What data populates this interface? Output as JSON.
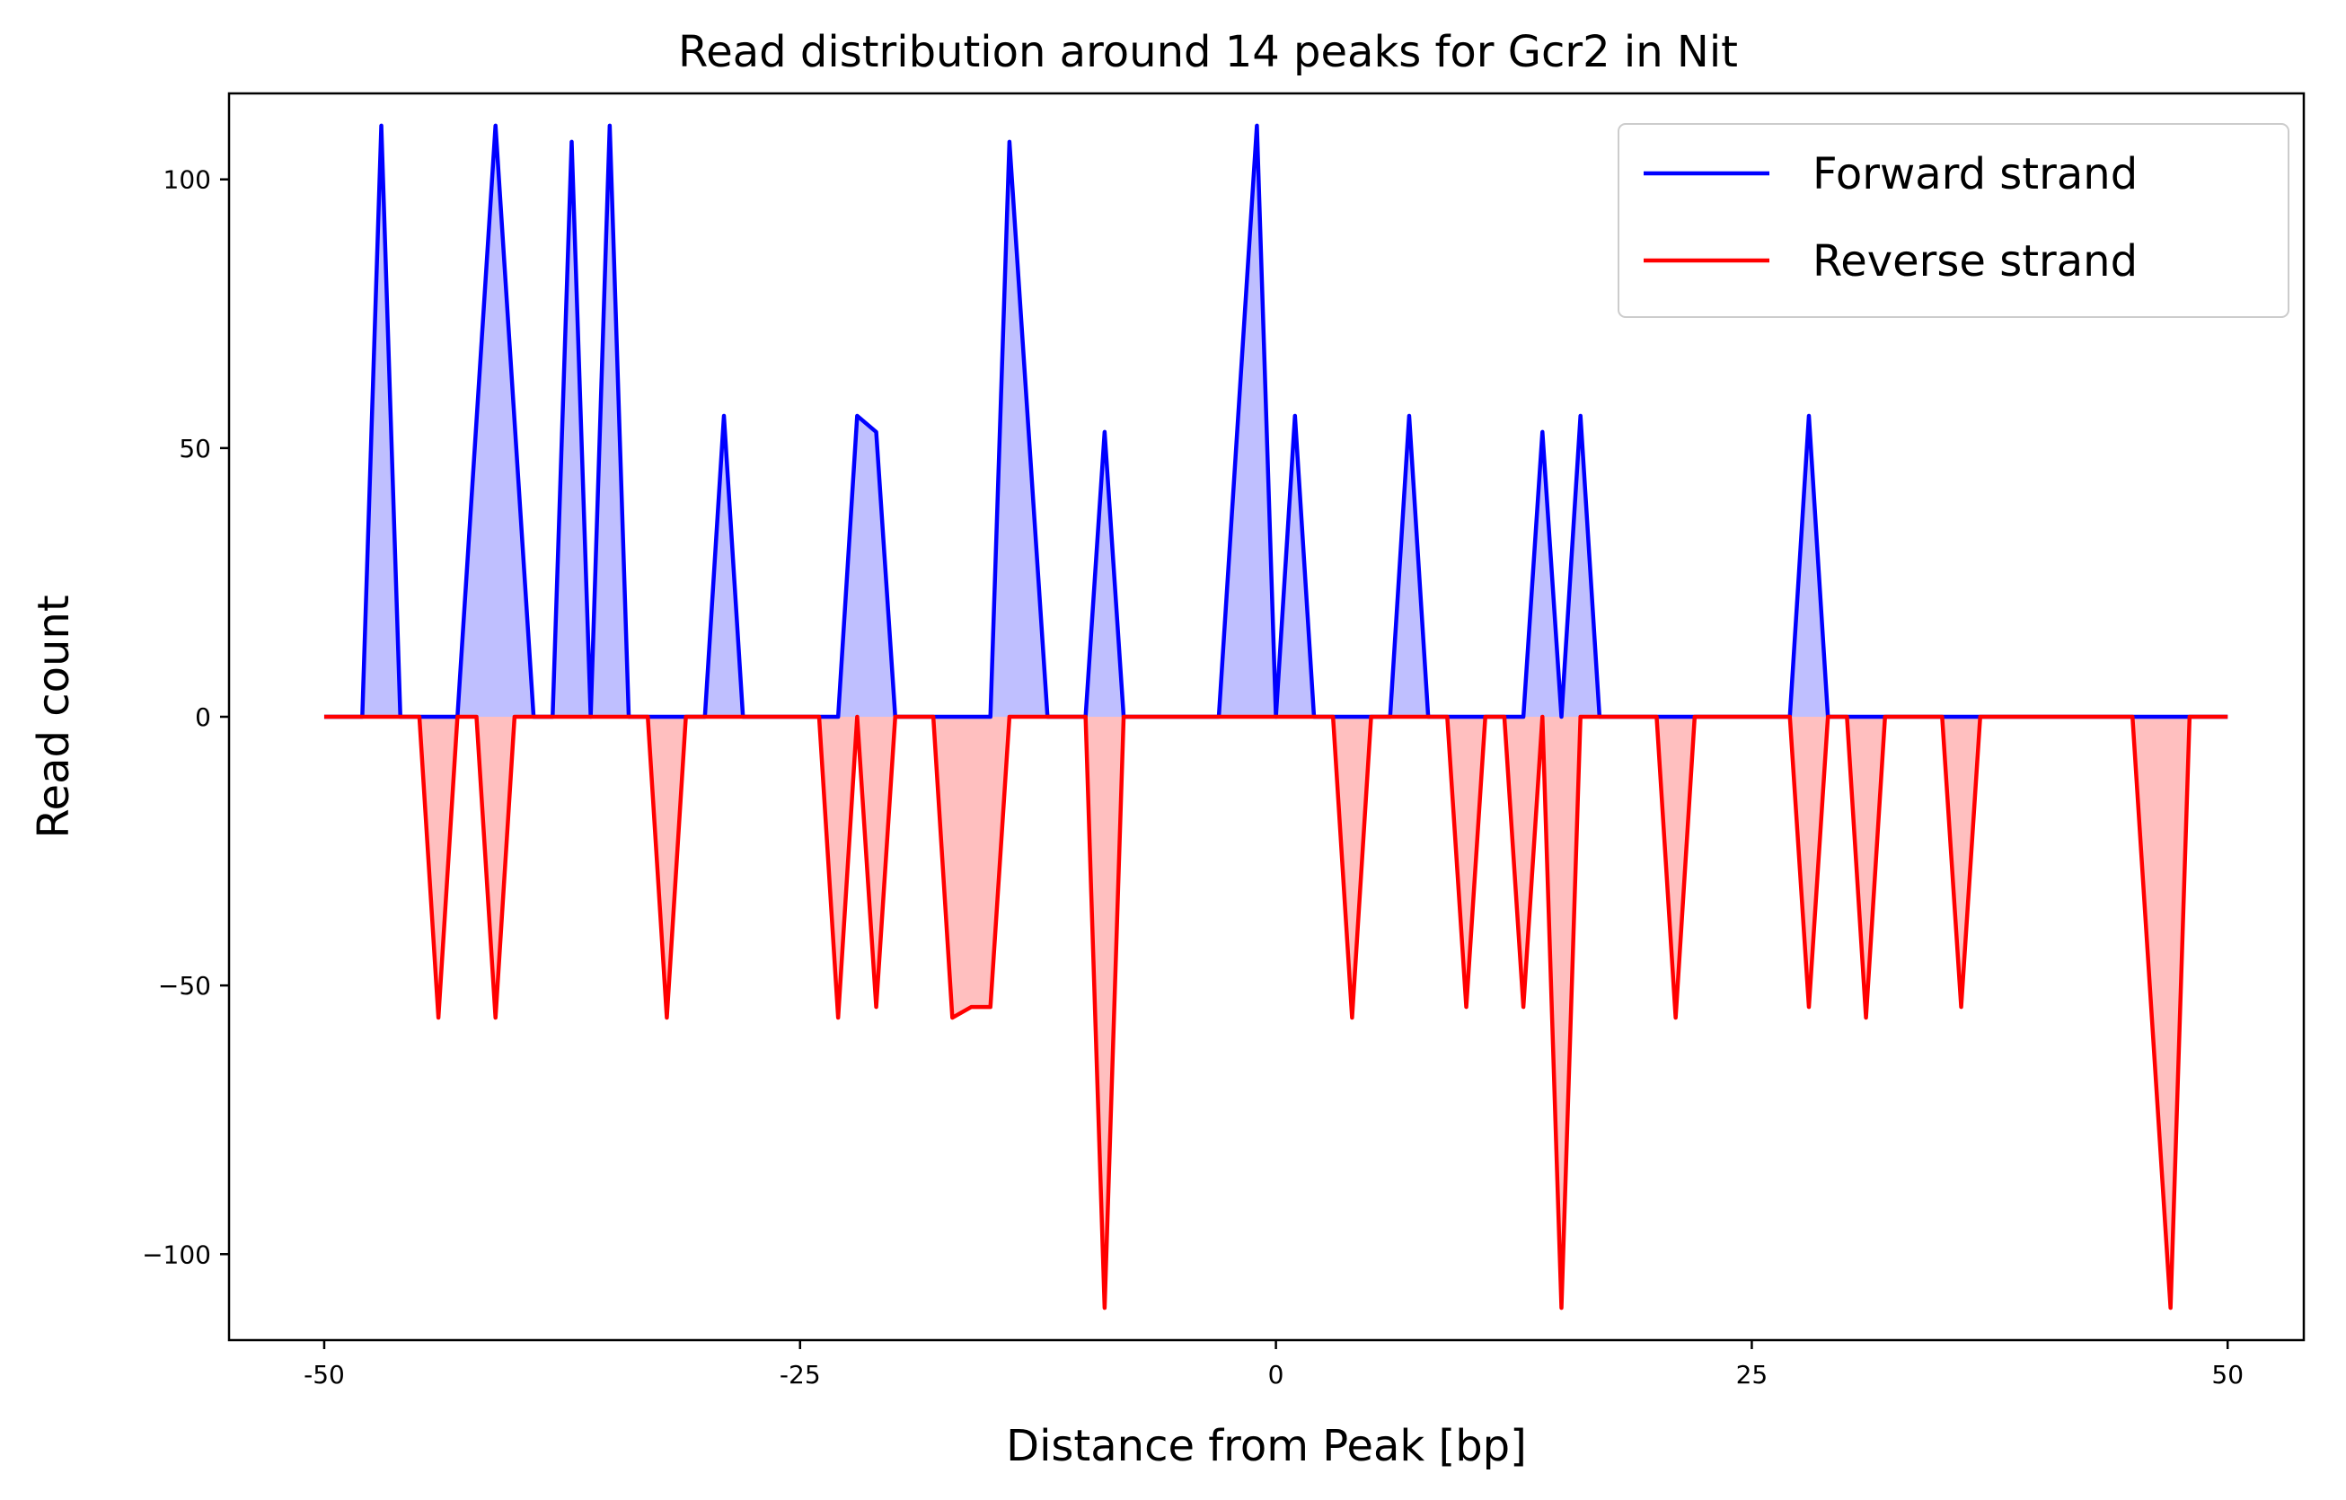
{
  "chart_data": {
    "type": "area",
    "title": "Read distribution around 14 peaks for Gcr2 in Nit",
    "xlabel": "Distance from Peak [bp]",
    "ylabel": "Read count",
    "xlim": [
      -55,
      54
    ],
    "ylim": [
      -116,
      116
    ],
    "xticks": [
      -50,
      -25,
      0,
      25,
      50
    ],
    "xtick_labels": [
      "-50",
      "-25",
      "0",
      "25",
      "50"
    ],
    "yticks": [
      -100,
      -50,
      0,
      50,
      100
    ],
    "ytick_labels": [
      "−100",
      "−50",
      "0",
      "50",
      "100"
    ],
    "grid": false,
    "legend_position": "top-right",
    "series": [
      {
        "name": "Forward strand",
        "color": "#0000ff",
        "fill": "#bfbfff",
        "x": [
          -50,
          -48,
          -47,
          -46,
          -45,
          -43,
          -41,
          -39,
          -38,
          -37,
          -36,
          -35,
          -34,
          -31,
          -30,
          -29,
          -28,
          -23,
          -22,
          -21,
          -20,
          -15,
          -14,
          -12,
          -10,
          -9,
          -8,
          -3,
          -1,
          0,
          1,
          2,
          6,
          7,
          8,
          13,
          14,
          15,
          16,
          17,
          27,
          28,
          29,
          50
        ],
        "values": [
          0,
          0,
          110,
          0,
          0,
          0,
          110,
          0,
          0,
          107,
          0,
          110,
          0,
          0,
          0,
          56,
          0,
          0,
          56,
          53,
          0,
          0,
          107,
          0,
          0,
          53,
          0,
          0,
          110,
          0,
          56,
          0,
          0,
          56,
          0,
          0,
          53,
          0,
          56,
          0,
          0,
          56,
          0,
          0
        ]
      },
      {
        "name": "Reverse strand",
        "color": "#ff0000",
        "fill": "#ffbfbf",
        "x": [
          -50,
          -45,
          -44,
          -43,
          -42,
          -41,
          -40,
          -33,
          -32,
          -31,
          -24,
          -23,
          -22,
          -21,
          -20,
          -18,
          -17,
          -16,
          -15,
          -14,
          -10,
          -9,
          -8,
          2,
          3,
          4,
          5,
          9,
          10,
          11,
          12,
          13,
          14,
          15,
          16,
          17,
          20,
          21,
          22,
          27,
          28,
          29,
          30,
          31,
          32,
          35,
          36,
          37,
          45,
          47,
          48,
          50
        ],
        "values": [
          0,
          0,
          -56,
          0,
          0,
          -56,
          0,
          0,
          -56,
          0,
          0,
          -56,
          0,
          -54,
          0,
          0,
          -56,
          -54,
          -54,
          0,
          0,
          -110,
          0,
          0,
          0,
          -56,
          0,
          0,
          -54,
          0,
          0,
          -54,
          0,
          -110,
          0,
          0,
          0,
          -56,
          0,
          0,
          -54,
          0,
          0,
          -56,
          0,
          0,
          -54,
          0,
          0,
          -110,
          0,
          0
        ]
      }
    ]
  }
}
